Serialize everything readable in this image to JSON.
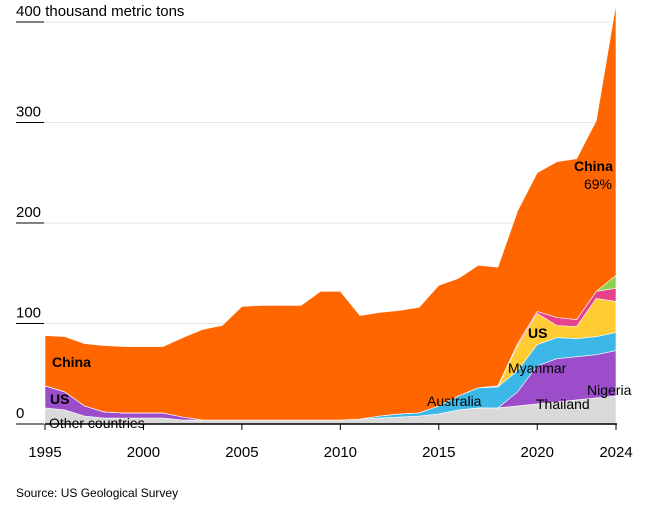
{
  "chart_data": {
    "type": "area",
    "stacked": true,
    "ylabel": "thousand metric tons",
    "ylim": [
      0,
      400
    ],
    "yticks": [
      {
        "value": 0,
        "label": "0"
      },
      {
        "value": 100,
        "label": "100"
      },
      {
        "value": 200,
        "label": "200"
      },
      {
        "value": 300,
        "label": "300"
      },
      {
        "value": 400,
        "label": "400 thousand metric tons"
      }
    ],
    "xlim": [
      1995,
      2024
    ],
    "xticks": [
      "1995",
      "2000",
      "2005",
      "2010",
      "2015",
      "2020",
      "2024"
    ],
    "years": [
      1995,
      1996,
      1997,
      1998,
      1999,
      2000,
      2001,
      2002,
      2003,
      2004,
      2005,
      2006,
      2007,
      2008,
      2009,
      2010,
      2011,
      2012,
      2013,
      2014,
      2015,
      2016,
      2017,
      2018,
      2019,
      2020,
      2021,
      2022,
      2023,
      2024
    ],
    "series": [
      {
        "name": "Other countries",
        "color": "#d9d9d9",
        "values": [
          16,
          14,
          8,
          6,
          6,
          6,
          6,
          4,
          4,
          4,
          4,
          4,
          4,
          4,
          4,
          4,
          5,
          6,
          7,
          8,
          10,
          14,
          16,
          16,
          18,
          20,
          22,
          24,
          26,
          28
        ]
      },
      {
        "name": "US",
        "color": "#9b4dca",
        "values": [
          22,
          18,
          10,
          6,
          5,
          5,
          5,
          3,
          0,
          0,
          0,
          0,
          0,
          0,
          0,
          0,
          0,
          0,
          0,
          0,
          0,
          0,
          0,
          0,
          14,
          38,
          43,
          43,
          43,
          45
        ]
      },
      {
        "name": "Australia",
        "color": "#3cb8e8",
        "values": [
          0,
          0,
          0,
          0,
          0,
          0,
          0,
          0,
          0,
          0,
          0,
          0,
          0,
          0,
          0,
          0,
          0,
          2,
          3,
          3,
          8,
          14,
          20,
          21,
          21,
          21,
          21,
          18,
          18,
          18
        ]
      },
      {
        "name": "Myanmar",
        "color": "#ffcc33",
        "values": [
          0,
          0,
          0,
          0,
          0,
          0,
          0,
          0,
          0,
          0,
          0,
          0,
          0,
          0,
          0,
          0,
          0,
          0,
          0,
          0,
          0,
          0,
          0,
          0,
          25,
          31,
          12,
          12,
          38,
          31
        ]
      },
      {
        "name": "Thailand",
        "color": "#e8418c",
        "values": [
          0,
          0,
          0,
          0,
          0,
          0,
          0,
          0,
          0,
          0,
          0,
          0,
          0,
          0,
          0,
          0,
          0,
          0,
          0,
          0,
          0,
          0,
          0,
          1,
          2,
          2,
          8,
          7,
          7,
          13
        ]
      },
      {
        "name": "Nigeria",
        "color": "#8fd14f",
        "values": [
          0,
          0,
          0,
          0,
          0,
          0,
          0,
          0,
          0,
          0,
          0,
          0,
          0,
          0,
          0,
          0,
          0,
          0,
          0,
          0,
          0,
          0,
          0,
          0,
          0,
          0,
          0,
          0,
          0,
          13
        ]
      },
      {
        "name": "China",
        "color": "#ff6600",
        "values": [
          50,
          55,
          62,
          66,
          66,
          66,
          66,
          79,
          90,
          94,
          113,
          114,
          114,
          114,
          128,
          128,
          103,
          103,
          103,
          105,
          120,
          117,
          122,
          118,
          132,
          138,
          155,
          160,
          170,
          270
        ]
      }
    ],
    "annotations": [
      {
        "text": "China",
        "bold": true
      },
      {
        "text": "China",
        "bold": true
      },
      {
        "text": "69%",
        "bold": false
      },
      {
        "text": "US",
        "bold": true
      },
      {
        "text": "US",
        "bold": true
      },
      {
        "text": "Other countries",
        "bold": false
      },
      {
        "text": "Australia",
        "bold": false
      },
      {
        "text": "Myanmar",
        "bold": false
      },
      {
        "text": "Thailand",
        "bold": false
      },
      {
        "text": "Nigeria",
        "bold": false
      }
    ]
  },
  "source": "Source: US Geological Survey"
}
